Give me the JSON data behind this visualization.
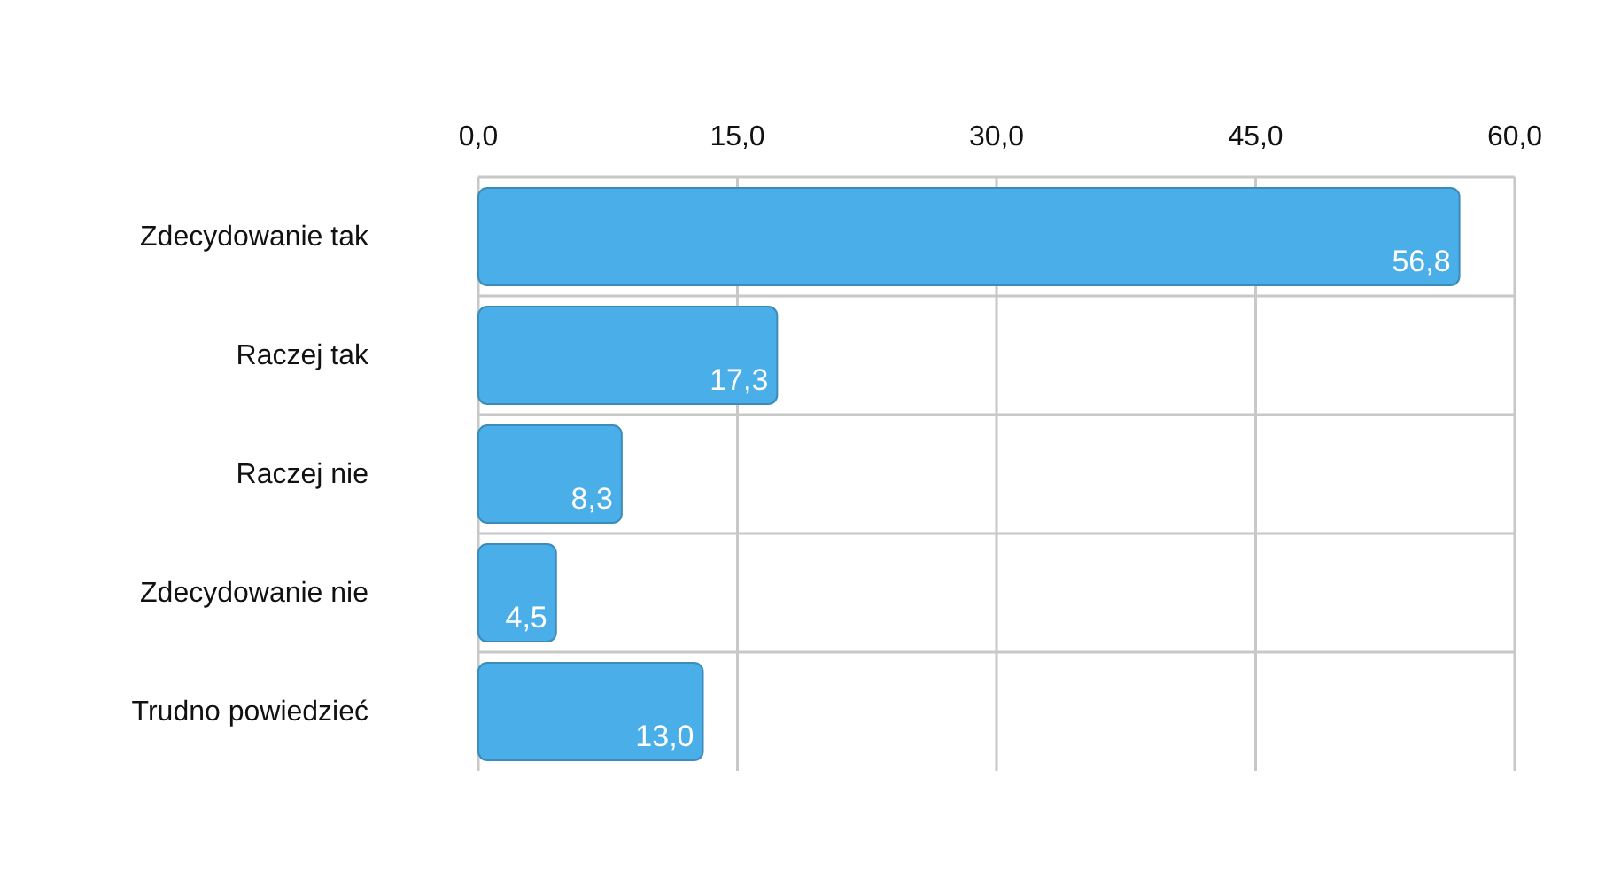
{
  "chart_data": {
    "type": "bar",
    "orientation": "horizontal",
    "categories": [
      "Zdecydowanie tak",
      "Raczej tak",
      "Raczej nie",
      "Zdecydowanie nie",
      "Trudno powiedzieć"
    ],
    "values": [
      56.8,
      17.3,
      8.3,
      4.5,
      13.0
    ],
    "value_labels": [
      "56,8",
      "17,3",
      "8,3",
      "4,5",
      "13,0"
    ],
    "color": "#4aaee8",
    "xlim": [
      0,
      60
    ],
    "xticks": [
      {
        "value": 0,
        "label": "0,0"
      },
      {
        "value": 15,
        "label": "15,0"
      },
      {
        "value": 30,
        "label": "30,0"
      },
      {
        "value": 45,
        "label": "45,0"
      },
      {
        "value": 60,
        "label": "60,0"
      }
    ],
    "grid": true
  }
}
